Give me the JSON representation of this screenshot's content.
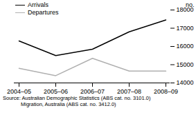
{
  "chart_data": {
    "type": "line",
    "categories": [
      "2004–05",
      "2005–06",
      "2006–07",
      "2007–08",
      "2008–09"
    ],
    "series": [
      {
        "name": "Arrivals",
        "color": "#000000",
        "values": [
          16300,
          15500,
          15850,
          16800,
          17450
        ]
      },
      {
        "name": "Departures",
        "color": "#b0b0b0",
        "values": [
          14800,
          14400,
          15350,
          14650,
          14650
        ]
      }
    ],
    "ylim": [
      14000,
      18000
    ],
    "yticks": [
      14000,
      15000,
      16000,
      17000,
      18000
    ],
    "y_label": "no.",
    "legend": "top-left",
    "source": [
      "Source: Australian Demographic Statistics (ABS cat. no. 3101.0)",
      "Migration, Australia (ABS cat. no. 3412.0)"
    ]
  }
}
